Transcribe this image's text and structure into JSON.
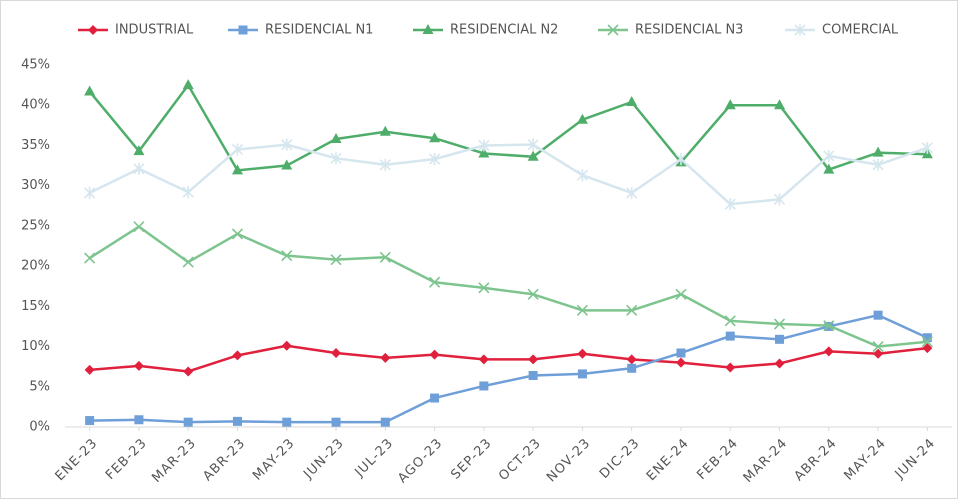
{
  "chart_data": {
    "type": "line",
    "categories": [
      "ENE-23",
      "FEB-23",
      "MAR-23",
      "ABR-23",
      "MAY-23",
      "JUN-23",
      "JUL-23",
      "AGO-23",
      "SEP-23",
      "OCT-23",
      "NOV-23",
      "DIC-23",
      "ENE-24",
      "FEB-24",
      "MAR-24",
      "ABR-24",
      "MAY-24",
      "JUN-24"
    ],
    "series": [
      {
        "name": "INDUSTRIAL",
        "color": "#e0203c",
        "marker": "diamond",
        "values": [
          7.1,
          7.6,
          6.9,
          8.9,
          10.1,
          9.2,
          8.6,
          9.0,
          8.4,
          8.4,
          9.1,
          8.4,
          8.0,
          7.4,
          7.9,
          9.4,
          9.1,
          9.8
        ]
      },
      {
        "name": "RESIDENCIAL N1",
        "color": "#6f9fd8",
        "marker": "square",
        "values": [
          0.8,
          0.9,
          0.6,
          0.7,
          0.6,
          0.6,
          0.6,
          3.6,
          5.1,
          6.4,
          6.6,
          7.3,
          9.2,
          11.3,
          10.9,
          12.5,
          13.9,
          11.1
        ]
      },
      {
        "name": "RESIDENCIAL N2",
        "color": "#4fad6a",
        "marker": "triangle",
        "values": [
          41.7,
          34.3,
          42.5,
          31.9,
          32.5,
          35.8,
          36.7,
          35.9,
          34.0,
          33.6,
          38.2,
          40.4,
          32.9,
          40.0,
          40.0,
          32.0,
          34.1,
          33.9
        ]
      },
      {
        "name": "RESIDENCIAL N3",
        "color": "#7dc48e",
        "marker": "x",
        "values": [
          21.0,
          24.9,
          20.5,
          24.0,
          21.3,
          20.8,
          21.1,
          18.0,
          17.3,
          16.5,
          14.5,
          14.5,
          16.5,
          13.2,
          12.8,
          12.6,
          10.0,
          10.6
        ]
      },
      {
        "name": "COMERCIAL",
        "color": "#d5e6ee",
        "marker": "star",
        "values": [
          29.1,
          32.1,
          29.2,
          34.5,
          35.1,
          33.4,
          32.6,
          33.3,
          35.0,
          35.1,
          31.3,
          29.1,
          33.3,
          27.7,
          28.3,
          33.7,
          32.6,
          34.7
        ]
      }
    ],
    "ylim": [
      0,
      45
    ],
    "yticks": [
      {
        "value": 0,
        "label": "0%"
      },
      {
        "value": 5,
        "label": "5%"
      },
      {
        "value": 10,
        "label": "10%"
      },
      {
        "value": 15,
        "label": "15%"
      },
      {
        "value": 20,
        "label": "20%"
      },
      {
        "value": 25,
        "label": "25%"
      },
      {
        "value": 30,
        "label": "30%"
      },
      {
        "value": 35,
        "label": "35%"
      },
      {
        "value": 40,
        "label": "40%"
      },
      {
        "value": 45,
        "label": "45%"
      }
    ],
    "grid": false,
    "legend": "top"
  }
}
